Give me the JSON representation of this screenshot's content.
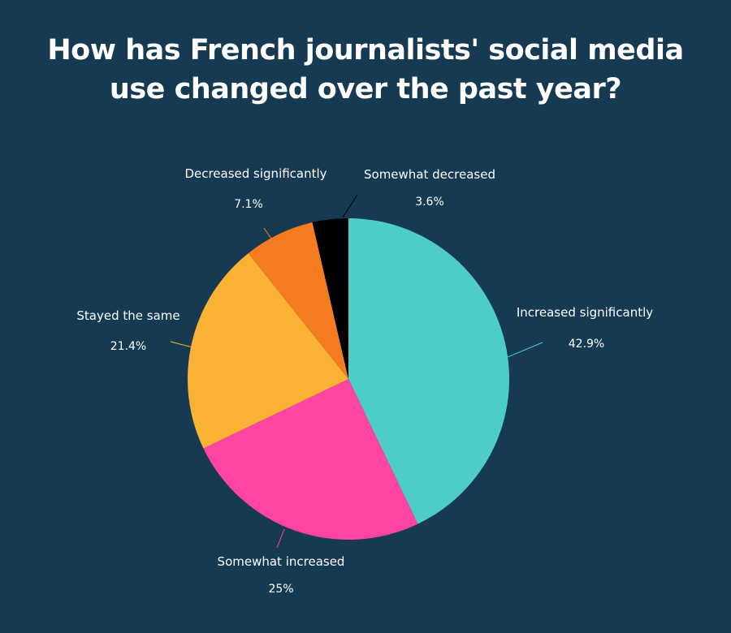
{
  "title_lines": [
    "How has French journalists' social media",
    "use changed over the past year?"
  ],
  "chart_data": {
    "type": "pie",
    "title": "How has French journalists' social media use changed over the past year?",
    "slices": [
      {
        "label": "Increased significantly",
        "value": 42.9,
        "display": "42.9%",
        "color": "#4ecdc8"
      },
      {
        "label": "Somewhat increased",
        "value": 25,
        "display": "25%",
        "color": "#ff45a0"
      },
      {
        "label": "Stayed the same",
        "value": 21.4,
        "display": "21.4%",
        "color": "#f9b233"
      },
      {
        "label": "Decreased significantly",
        "value": 7.1,
        "display": "7.1%",
        "color": "#f47b20"
      },
      {
        "label": "Somewhat decreased",
        "value": 3.6,
        "display": "3.6%",
        "color": "#000000"
      }
    ]
  }
}
